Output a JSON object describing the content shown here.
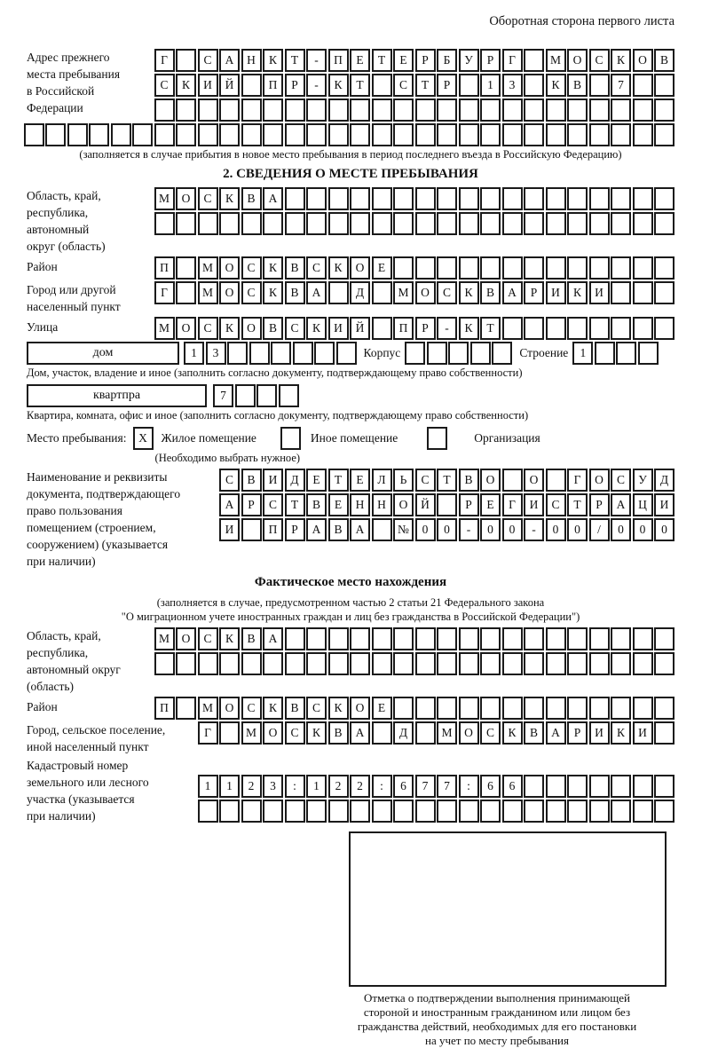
{
  "page": {
    "header": "Оборотная сторона первого листа"
  },
  "prev_address": {
    "label_lines": [
      "Адрес прежнего",
      "места пребывания",
      "в Российской",
      "Федерации"
    ],
    "row1": [
      "Г",
      "",
      "С",
      "А",
      "Н",
      "К",
      "Т",
      "-",
      "П",
      "Е",
      "Т",
      "Е",
      "Р",
      "Б",
      "У",
      "Р",
      "Г",
      "",
      "М",
      "О",
      "С",
      "К",
      "О",
      "В"
    ],
    "row2": [
      "С",
      "К",
      "И",
      "Й",
      "",
      "П",
      "Р",
      "-",
      "К",
      "Т",
      "",
      "С",
      "Т",
      "Р",
      "",
      "1",
      "3",
      "",
      "К",
      "В",
      "",
      "7",
      "",
      ""
    ],
    "row3": 24,
    "row4": 30,
    "note": "(заполняется в случае прибытия в новое место пребывания в период последнего въезда в Российскую Федерацию)"
  },
  "section2": {
    "title": "2. СВЕДЕНИЯ О МЕСТЕ ПРЕБЫВАНИЯ",
    "region": {
      "label_lines": [
        "Область, край,",
        "республика,",
        "автономный",
        "округ (область)"
      ],
      "row1": [
        "М",
        "О",
        "С",
        "К",
        "В",
        "А",
        "",
        "",
        "",
        "",
        "",
        "",
        "",
        "",
        "",
        "",
        "",
        "",
        "",
        "",
        "",
        "",
        "",
        ""
      ],
      "row2": 24
    },
    "district": {
      "label": "Район",
      "row": [
        "П",
        "",
        "М",
        "О",
        "С",
        "К",
        "В",
        "С",
        "К",
        "О",
        "Е",
        "",
        "",
        "",
        "",
        "",
        "",
        "",
        "",
        "",
        "",
        "",
        "",
        ""
      ]
    },
    "city": {
      "label_lines": [
        "Город или другой",
        "населенный пункт"
      ],
      "row": [
        "Г",
        "",
        "М",
        "О",
        "С",
        "К",
        "В",
        "А",
        "",
        "Д",
        "",
        "М",
        "О",
        "С",
        "К",
        "В",
        "А",
        "Р",
        "И",
        "К",
        "И",
        "",
        "",
        ""
      ]
    },
    "street": {
      "label": "Улица",
      "row": [
        "М",
        "О",
        "С",
        "К",
        "О",
        "В",
        "С",
        "К",
        "И",
        "Й",
        "",
        "П",
        "Р",
        "-",
        "К",
        "Т",
        "",
        "",
        "",
        "",
        "",
        "",
        "",
        ""
      ]
    },
    "house": {
      "box_label": "дом",
      "cells": [
        "1",
        "3",
        "",
        "",
        "",
        "",
        "",
        ""
      ],
      "korpus_label": "Корпус",
      "korpus_cells": 5,
      "stroenie_label": "Строение",
      "stroenie_cells": [
        "1",
        "",
        "",
        ""
      ]
    },
    "house_caption": "Дом, участок, владение и иное (заполнить согласно документу, подтверждающему право собственности)",
    "apartment": {
      "box_label": "квартпра",
      "cells": [
        "7",
        "",
        "",
        ""
      ]
    },
    "apartment_caption": "Квартира, комната, офис и иное (заполнить согласно документу, подтверждающему право собственности)",
    "stay_type": {
      "label": "Место пребывания:",
      "options": [
        {
          "mark": "X",
          "label": "Жилое помещение"
        },
        {
          "mark": "",
          "label": "Иное помещение"
        },
        {
          "mark": "",
          "label": "Организация"
        }
      ],
      "note": "(Необходимо выбрать нужное)"
    },
    "document": {
      "label_lines": [
        "Наименование и реквизиты",
        "документа, подтверждающего",
        "право пользования",
        "помещением (строением,",
        "сооружением) (указывается",
        "при наличии)"
      ],
      "row1": [
        "С",
        "В",
        "И",
        "Д",
        "Е",
        "Т",
        "Е",
        "Л",
        "Ь",
        "С",
        "Т",
        "В",
        "О",
        "",
        "О",
        "",
        "Г",
        "О",
        "С",
        "У",
        "Д"
      ],
      "row2": [
        "А",
        "Р",
        "С",
        "Т",
        "В",
        "Е",
        "Н",
        "Н",
        "О",
        "Й",
        "",
        "Р",
        "Е",
        "Г",
        "И",
        "С",
        "Т",
        "Р",
        "А",
        "Ц",
        "И"
      ],
      "row3": [
        "И",
        "",
        "П",
        "Р",
        "А",
        "В",
        "А",
        "",
        "№",
        "0",
        "0",
        "-",
        "0",
        "0",
        "-",
        "0",
        "0",
        "/",
        "0",
        "0",
        "0"
      ]
    }
  },
  "actual_location": {
    "title": "Фактическое место нахождения",
    "note_line1": "(заполняется в случае, предусмотренном частью 2 статьи 21 Федерального закона",
    "note_line2": "\"О миграционном учете иностранных граждан и лиц без гражданства в Российской Федерации\")",
    "region": {
      "label_lines": [
        "Область, край,",
        "республика,",
        "автономный округ",
        "(область)"
      ],
      "row1": [
        "М",
        "О",
        "С",
        "К",
        "В",
        "А",
        "",
        "",
        "",
        "",
        "",
        "",
        "",
        "",
        "",
        "",
        "",
        "",
        "",
        "",
        "",
        "",
        "",
        ""
      ],
      "row2": 24
    },
    "district": {
      "label": "Район",
      "row": [
        "П",
        "",
        "М",
        "О",
        "С",
        "К",
        "В",
        "С",
        "К",
        "О",
        "Е",
        "",
        "",
        "",
        "",
        "",
        "",
        "",
        "",
        "",
        "",
        "",
        "",
        ""
      ]
    },
    "city": {
      "label_lines": [
        "Город, сельское поселение,",
        "иной населенный пункт"
      ],
      "row": [
        "Г",
        "",
        "М",
        "О",
        "С",
        "К",
        "В",
        "А",
        "",
        "Д",
        "",
        "М",
        "О",
        "С",
        "К",
        "В",
        "А",
        "Р",
        "И",
        "К",
        "И",
        ""
      ]
    },
    "cadastral": {
      "label_lines": [
        "Кадастровый номер",
        "земельного или лесного",
        "участка (указывается",
        "при наличии)"
      ],
      "row1": [
        "1",
        "1",
        "2",
        "3",
        ":",
        "1",
        "2",
        "2",
        ":",
        "6",
        "7",
        "7",
        ":",
        "6",
        "6",
        "",
        "",
        "",
        "",
        "",
        "",
        ""
      ],
      "row2": 22
    }
  },
  "stamp": {
    "caption_lines": [
      "Отметка о подтверждении выполнения принимающей",
      "стороной и иностранным гражданином или лицом без",
      "гражданства действий, необходимых для его постановки",
      "на учет по месту пребывания"
    ]
  }
}
